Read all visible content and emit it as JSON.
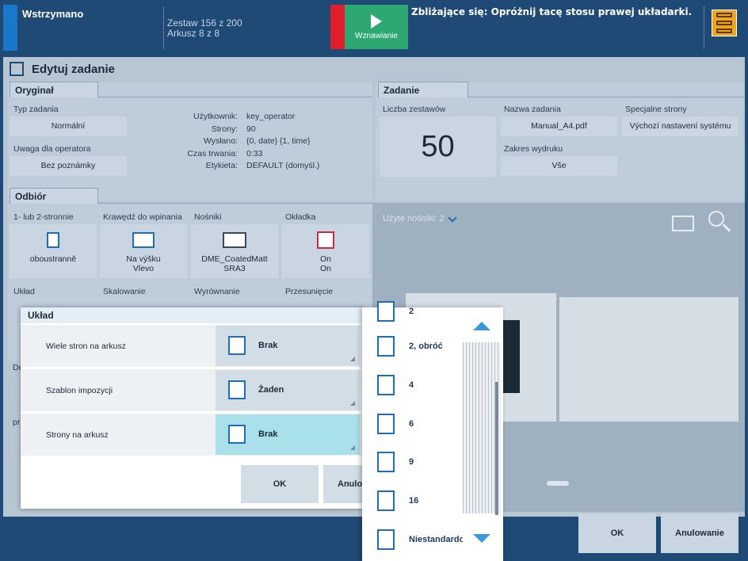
{
  "topbar": {
    "status": "Wstrzymano",
    "set_info": "Zestaw 156 z 200",
    "sheet_info": "Arkusz 8 z 8",
    "resume_label": "Wznawianie",
    "message": "Zbliżające się: Opróżnij tacę stosu prawej układarki."
  },
  "page": {
    "title": "Edytuj zadanie"
  },
  "original": {
    "tab": "Oryginał",
    "job_type_label": "Typ zadania",
    "job_type_value": "Normální",
    "operator_note_label": "Uwaga dla operatora",
    "operator_note_value": "Bez poznámky",
    "info": [
      {
        "k": "Użytkownik:",
        "v": "key_operator"
      },
      {
        "k": "Strony:",
        "v": "90"
      },
      {
        "k": "Wysłano:",
        "v": "{0, date} {1, time}"
      },
      {
        "k": "Czas trwania:",
        "v": "0:33"
      },
      {
        "k": "Etykieta:",
        "v": "DEFAULT (domyśl.)"
      }
    ]
  },
  "job": {
    "tab": "Zadanie",
    "sets_label": "Liczba zestawów",
    "sets_value": "50",
    "name_label": "Nazwa zadania",
    "name_value": "Manual_A4.pdf",
    "range_label": "Zakres wydruku",
    "range_value": "Vše",
    "special_label": "Specjalne strony",
    "special_value": "Výchozí nastavení systému"
  },
  "output": {
    "tab": "Odbiór",
    "duplex_label": "1- lub 2-stronnie",
    "duplex_value": "oboustranně",
    "binding_label": "Krawędź do wpinania",
    "binding_value1": "Na výšku",
    "binding_value2": "Vlevo",
    "media_label": "Nośniki",
    "media_value1": "DME_CoatedMatt",
    "media_value2": "SRA3",
    "cover_label": "Okładka",
    "cover_value1": "On",
    "cover_value2": "On",
    "layout_label": "Układ",
    "scaling_label": "Skalowanie",
    "align_label": "Wyrównanie",
    "shift_label": "Przesunięcie",
    "partial_d": "De",
    "partial_pr": "pr"
  },
  "preview": {
    "media_used": "Użyte nośniki: 2"
  },
  "buttons": {
    "ok": "OK",
    "cancel": "Anulowanie"
  },
  "dialog": {
    "title": "Układ",
    "rows": [
      {
        "label": "Wiele stron na arkusz",
        "value": "Brak"
      },
      {
        "label": "Szablon impozycji",
        "value": "Żaden"
      },
      {
        "label": "Strony na arkusz",
        "value": "Brak"
      }
    ],
    "ok": "OK",
    "cancel": "Anulo"
  },
  "dropdown": {
    "options": [
      "2",
      "2, obróć",
      "4",
      "6",
      "9",
      "16",
      "Niestandardowy"
    ]
  },
  "colors": {
    "resume": "#2da873",
    "alert": "#e01e2c",
    "accent": "#1a78c8",
    "menu": "#f2a31c"
  }
}
